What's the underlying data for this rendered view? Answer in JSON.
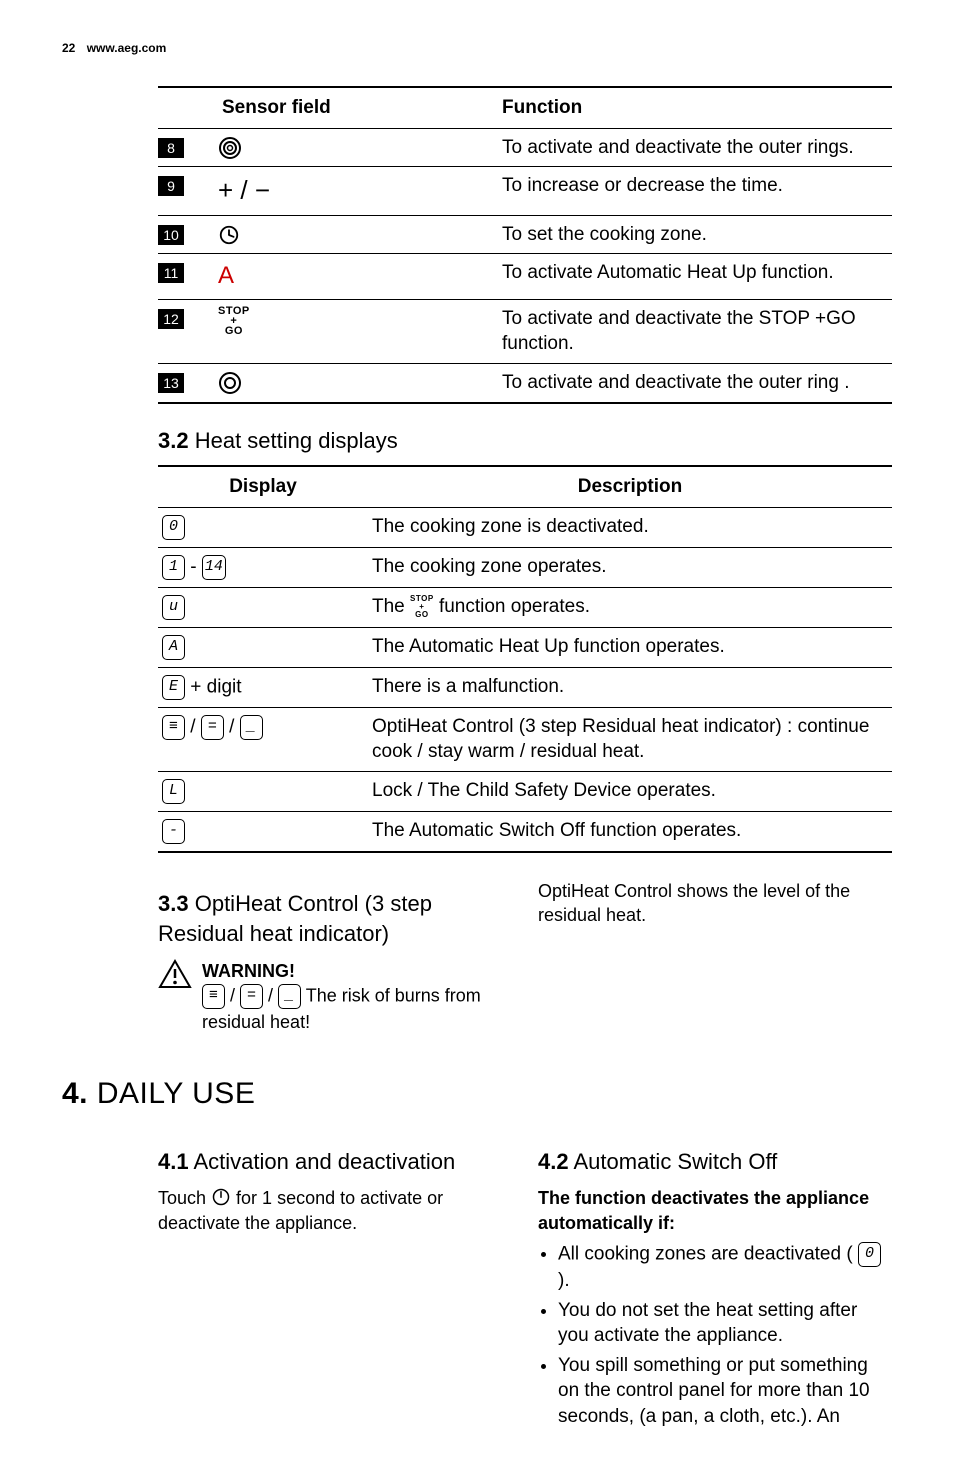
{
  "page_header": {
    "number": "22",
    "url": "www.aeg.com"
  },
  "sensor_table": {
    "headers": [
      "",
      "Sensor field",
      "Function"
    ],
    "rows": [
      {
        "num": "8",
        "icon": "ring-double",
        "func": "To activate and deactivate the outer rings."
      },
      {
        "num": "9",
        "icon": "plus-minus",
        "func": "To increase or decrease the time."
      },
      {
        "num": "10",
        "icon": "clock",
        "func": "To set the cooking zone."
      },
      {
        "num": "11",
        "icon": "A",
        "func": "To activate Automatic Heat Up function."
      },
      {
        "num": "12",
        "icon": "stopgo",
        "func": "To activate and deactivate the STOP +GO function."
      },
      {
        "num": "13",
        "icon": "ring-single",
        "func": "To activate and deactivate the outer ring ."
      }
    ]
  },
  "sec32_title": {
    "num": "3.2",
    "text": "Heat setting displays"
  },
  "display_table": {
    "headers": [
      "Display",
      "Description"
    ],
    "rows": [
      {
        "disp": [
          {
            "seg": "0"
          }
        ],
        "desc": "The cooking zone is deactivated."
      },
      {
        "disp": [
          {
            "seg": "1"
          },
          {
            "text": " - "
          },
          {
            "seg": "14"
          }
        ],
        "desc": "The cooking zone operates."
      },
      {
        "disp": [
          {
            "seg": "u"
          }
        ],
        "desc_parts": [
          "The ",
          {
            "stopgo": true
          },
          " function operates."
        ]
      },
      {
        "disp": [
          {
            "seg": "A"
          }
        ],
        "desc": "The Automatic Heat Up function operates."
      },
      {
        "disp": [
          {
            "seg": "E"
          },
          {
            "text": " + digit"
          }
        ],
        "desc": "There is a malfunction."
      },
      {
        "disp": [
          {
            "seg": "≡"
          },
          {
            "text": " / "
          },
          {
            "seg": "="
          },
          {
            "text": " / "
          },
          {
            "seg": "_"
          }
        ],
        "desc": "OptiHeat Control (3 step Residual heat indicator) : continue cook / stay warm / residual heat."
      },
      {
        "disp": [
          {
            "seg": "L"
          }
        ],
        "desc": "Lock / The Child Safety Device operates."
      },
      {
        "disp": [
          {
            "seg": "-"
          }
        ],
        "desc": "The Automatic Switch Off function operates."
      }
    ]
  },
  "sec33_title": {
    "num": "3.3",
    "text": "OptiHeat Control (3 step Residual heat indicator)"
  },
  "sec33_right": "OptiHeat Control shows the level of the residual heat.",
  "warning": {
    "title": "WARNING!",
    "symbols": [
      {
        "seg": "≡"
      },
      {
        "text": " / "
      },
      {
        "seg": "="
      },
      {
        "text": " / "
      },
      {
        "seg": "_"
      }
    ],
    "text": " The risk of burns from residual heat!"
  },
  "chapter4": {
    "num": "4.",
    "text": "DAILY USE"
  },
  "sec41": {
    "title_num": "4.1",
    "title_text": "Activation and deactivation",
    "body_pre": "Touch ",
    "body_post": " for 1 second to activate or deactivate the appliance."
  },
  "sec42": {
    "title_num": "4.2",
    "title_text": "Automatic Switch Off",
    "lead": "The function deactivates the appliance automatically if:",
    "bullets": [
      {
        "pre": "All cooking zones are deactivated ( ",
        "seg": "0",
        "post": " )."
      },
      {
        "text": "You do not set the heat setting after you activate the appliance."
      },
      {
        "text": "You spill something or put something on the control panel for more than 10 seconds, (a pan, a cloth, etc.). An"
      }
    ]
  }
}
